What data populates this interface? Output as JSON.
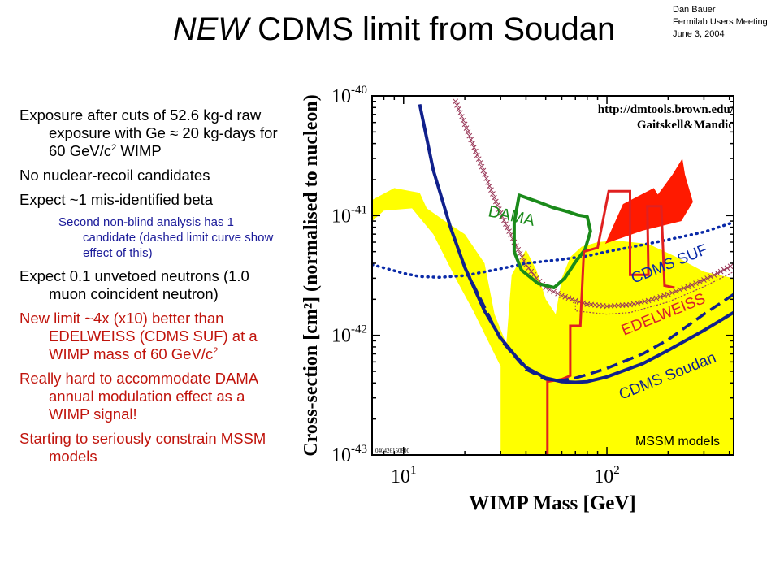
{
  "slide": {
    "title_italic": "NEW",
    "title_rest": " CDMS limit from Soudan",
    "corner": [
      "Dan Bauer",
      "Fermilab Users Meeting",
      "June 3, 2004"
    ]
  },
  "bullets": [
    {
      "id": "b1",
      "level": 1,
      "color": "black",
      "parts": [
        {
          "t": "Exposure after cuts of 52.6 kg-d raw exposure with Ge ≈ 20 kg-days for 60 GeV/c"
        },
        {
          "t": "2",
          "sup": true
        },
        {
          "t": " WIMP"
        }
      ]
    },
    {
      "id": "b2",
      "level": 1,
      "color": "black",
      "parts": [
        {
          "t": "No nuclear-recoil candidates"
        }
      ]
    },
    {
      "id": "b3",
      "level": 1,
      "color": "black",
      "parts": [
        {
          "t": "Expect ~1 mis-identified beta"
        }
      ]
    },
    {
      "id": "b4",
      "level": 2,
      "color": "blue",
      "parts": [
        {
          "t": "Second non-blind analysis has 1 candidate (dashed limit curve show effect of this)"
        }
      ]
    },
    {
      "id": "b5",
      "level": 1,
      "color": "black",
      "parts": [
        {
          "t": "Expect 0.1 unvetoed neutrons (1.0 muon coincident neutron)"
        }
      ]
    },
    {
      "id": "b6",
      "level": 1,
      "color": "red",
      "parts": [
        {
          "t": "New limit ~4x (x10) better than EDELWEISS (CDMS SUF) at a WIMP mass of 60 GeV/c"
        },
        {
          "t": "2",
          "sup": true
        }
      ]
    },
    {
      "id": "b7",
      "level": 1,
      "color": "red",
      "parts": [
        {
          "t": "Really hard to accommodate DAMA annual modulation effect as a WIMP signal!"
        }
      ]
    },
    {
      "id": "b8",
      "level": 1,
      "color": "red",
      "parts": [
        {
          "t": "Starting to seriously constrain MSSM models"
        }
      ]
    }
  ],
  "chart_data": {
    "type": "line",
    "xlabel": "WIMP Mass [GeV]",
    "ylabel": "Cross-section [cm²] (normalised to nucleon)",
    "x_scale": "log",
    "y_scale": "log",
    "xlim": [
      7,
      420
    ],
    "ylim": [
      1e-43,
      1e-40
    ],
    "x_ticks": [
      {
        "value": 10,
        "base": "10",
        "exp": "1"
      },
      {
        "value": 100,
        "base": "10",
        "exp": "2"
      }
    ],
    "y_ticks": [
      {
        "value": 1e-40,
        "base": "10",
        "exp": "-40"
      },
      {
        "value": 1e-41,
        "base": "10",
        "exp": "-41"
      },
      {
        "value": 1e-42,
        "base": "10",
        "exp": "-42"
      },
      {
        "value": 1e-43,
        "base": "10",
        "exp": "-43"
      }
    ],
    "annotations": {
      "url_line1": "http://dmtools.brown.edu/",
      "url_line2": "Gaitskell&Mandic",
      "plot_id": "040426150800",
      "mssm": "MSSM models",
      "dama": "DAMA",
      "cdms_suf": "CDMS SUF",
      "edelweiss": "EDELWEISS",
      "cdms_soudan": "CDMS Soudan"
    },
    "colors": {
      "mssm": "#ffff00",
      "red_region": "#ff1a00",
      "dama": "#1a8a1a",
      "cdms_suf": "#0a2aa8",
      "edelweiss": "#d8202a",
      "edelweiss_band": "#9a3a5a",
      "cdms_soudan": "#10208c",
      "red_curve": "#e02020"
    },
    "series": [
      {
        "key": "soudan",
        "style": "solid",
        "points": [
          [
            12,
            8.5e-41
          ],
          [
            14,
            2.4e-41
          ],
          [
            17,
            8e-42
          ],
          [
            20,
            3.7e-42
          ],
          [
            25,
            1.6e-42
          ],
          [
            30,
            9.5e-43
          ],
          [
            35,
            6.9e-43
          ],
          [
            40,
            5.4e-43
          ],
          [
            50,
            4.4e-43
          ],
          [
            60,
            4.1e-43
          ],
          [
            70,
            4.05e-43
          ],
          [
            80,
            4.1e-43
          ],
          [
            100,
            4.5e-43
          ],
          [
            150,
            5.8e-43
          ],
          [
            200,
            7.5e-43
          ],
          [
            300,
            1.1e-42
          ],
          [
            420,
            1.55e-42
          ]
        ]
      },
      {
        "key": "soudan_dashed",
        "style": "dashed",
        "points": [
          [
            20,
            3.7e-42
          ],
          [
            30,
            9.2e-43
          ],
          [
            40,
            5.2e-43
          ],
          [
            50,
            4.3e-43
          ],
          [
            60,
            4.2e-43
          ],
          [
            70,
            4.4e-43
          ],
          [
            80,
            4.7e-43
          ],
          [
            100,
            5.3e-43
          ],
          [
            150,
            7e-43
          ],
          [
            200,
            9.2e-43
          ],
          [
            300,
            1.5e-42
          ],
          [
            420,
            2.2e-42
          ]
        ]
      },
      {
        "key": "cdms_suf",
        "style": "dotted",
        "points": [
          [
            7,
            3.9e-42
          ],
          [
            10,
            3.3e-42
          ],
          [
            12,
            3.1e-42
          ],
          [
            15,
            3.05e-42
          ],
          [
            20,
            3.15e-42
          ],
          [
            30,
            3.6e-42
          ],
          [
            40,
            4e-42
          ],
          [
            60,
            4.3e-42
          ],
          [
            80,
            4.6e-42
          ],
          [
            100,
            5e-42
          ],
          [
            150,
            5.7e-42
          ],
          [
            200,
            6.3e-42
          ],
          [
            300,
            7.3e-42
          ],
          [
            420,
            8.8e-42
          ]
        ]
      },
      {
        "key": "edelweiss_crosses",
        "style": "crosses",
        "points": [
          [
            18,
            9e-41
          ],
          [
            20,
            5.8e-41
          ],
          [
            23,
            3.2e-41
          ],
          [
            26,
            1.9e-41
          ],
          [
            30,
            1.05e-41
          ],
          [
            35,
            6e-42
          ],
          [
            40,
            3.9e-42
          ],
          [
            45,
            3e-42
          ],
          [
            50,
            2.5e-42
          ],
          [
            60,
            2.15e-42
          ],
          [
            70,
            1.95e-42
          ],
          [
            80,
            1.82e-42
          ],
          [
            100,
            1.75e-42
          ],
          [
            130,
            1.8e-42
          ],
          [
            160,
            1.95e-42
          ],
          [
            200,
            2.2e-42
          ],
          [
            250,
            2.55e-42
          ],
          [
            300,
            2.9e-42
          ],
          [
            350,
            3.3e-42
          ],
          [
            420,
            3.9e-42
          ]
        ]
      },
      {
        "key": "edelweiss_band_lower",
        "style": "band",
        "points": [
          [
            70,
            1.6e-42
          ],
          [
            100,
            1.5e-42
          ],
          [
            130,
            1.55e-42
          ],
          [
            200,
            1.9e-42
          ],
          [
            300,
            2.55e-42
          ],
          [
            420,
            3.4e-42
          ]
        ]
      },
      {
        "key": "red_curve",
        "style": "solid",
        "points": [
          [
            51,
            1e-43
          ],
          [
            51,
            4.1e-43
          ],
          [
            60,
            4.3e-43
          ],
          [
            66,
            4.6e-43
          ],
          [
            66,
            1.2e-42
          ],
          [
            74,
            1.2e-42
          ],
          [
            77,
            5e-42
          ],
          [
            90,
            5.4e-42
          ],
          [
            102,
            1.6e-41
          ],
          [
            130,
            1.6e-41
          ],
          [
            130,
            3.2e-42
          ],
          [
            160,
            3.2e-42
          ],
          [
            158,
            1.2e-41
          ],
          [
            185,
            1.2e-41
          ],
          [
            192,
            2.6e-42
          ],
          [
            215,
            2.5e-42
          ]
        ]
      }
    ],
    "regions": [
      {
        "key": "mssm",
        "points": [
          [
            7,
            1.35e-41
          ],
          [
            9,
            1.7e-41
          ],
          [
            12,
            1.55e-41
          ],
          [
            13,
            1.15e-41
          ],
          [
            16,
            9e-42
          ],
          [
            20,
            7e-42
          ],
          [
            25,
            4e-42
          ],
          [
            28,
            1.5e-42
          ],
          [
            32,
            8.5e-43
          ],
          [
            34,
            3.2e-42
          ],
          [
            40,
            5.2e-42
          ],
          [
            45,
            3.5e-42
          ],
          [
            50,
            2e-42
          ],
          [
            56,
            1.5e-42
          ],
          [
            60,
            3e-42
          ],
          [
            66,
            4.5e-42
          ],
          [
            75,
            5.5e-42
          ],
          [
            90,
            6e-42
          ],
          [
            110,
            6.2e-42
          ],
          [
            160,
            5.8e-42
          ],
          [
            220,
            4.5e-42
          ],
          [
            300,
            3.4e-42
          ],
          [
            420,
            3e-42
          ],
          [
            420,
            1e-43
          ],
          [
            30,
            1e-43
          ],
          [
            30,
            5.5e-43
          ],
          [
            26,
            9e-43
          ],
          [
            22,
            1.6e-42
          ],
          [
            18,
            3e-42
          ],
          [
            14,
            7e-42
          ],
          [
            11,
            1.15e-41
          ],
          [
            8,
            1.1e-41
          ],
          [
            7,
            9e-42
          ]
        ]
      },
      {
        "key": "dama",
        "points": [
          [
            35,
            8.7e-42
          ],
          [
            37,
            1.48e-41
          ],
          [
            46,
            1.3e-41
          ],
          [
            54,
            1.17e-41
          ],
          [
            64,
            1.08e-41
          ],
          [
            72,
            1.01e-41
          ],
          [
            80,
            9.8e-42
          ],
          [
            83,
            7.4e-42
          ],
          [
            78,
            5.2e-42
          ],
          [
            70,
            4.1e-42
          ],
          [
            62,
            3e-42
          ],
          [
            55,
            2.5e-42
          ],
          [
            46,
            2.7e-42
          ],
          [
            38,
            3.5e-42
          ],
          [
            35,
            5e-42
          ],
          [
            35,
            8.7e-42
          ]
        ]
      },
      {
        "key": "red_region",
        "points": [
          [
            98,
            5.8e-42
          ],
          [
            120,
            1.25e-41
          ],
          [
            170,
            1.7e-41
          ],
          [
            178,
            1.5e-41
          ],
          [
            210,
            2.2e-41
          ],
          [
            235,
            3e-41
          ],
          [
            242,
            2.2e-41
          ],
          [
            265,
            1.3e-41
          ],
          [
            232,
            9e-42
          ],
          [
            150,
            7.5e-42
          ],
          [
            100,
            5.9e-42
          ]
        ]
      }
    ]
  }
}
